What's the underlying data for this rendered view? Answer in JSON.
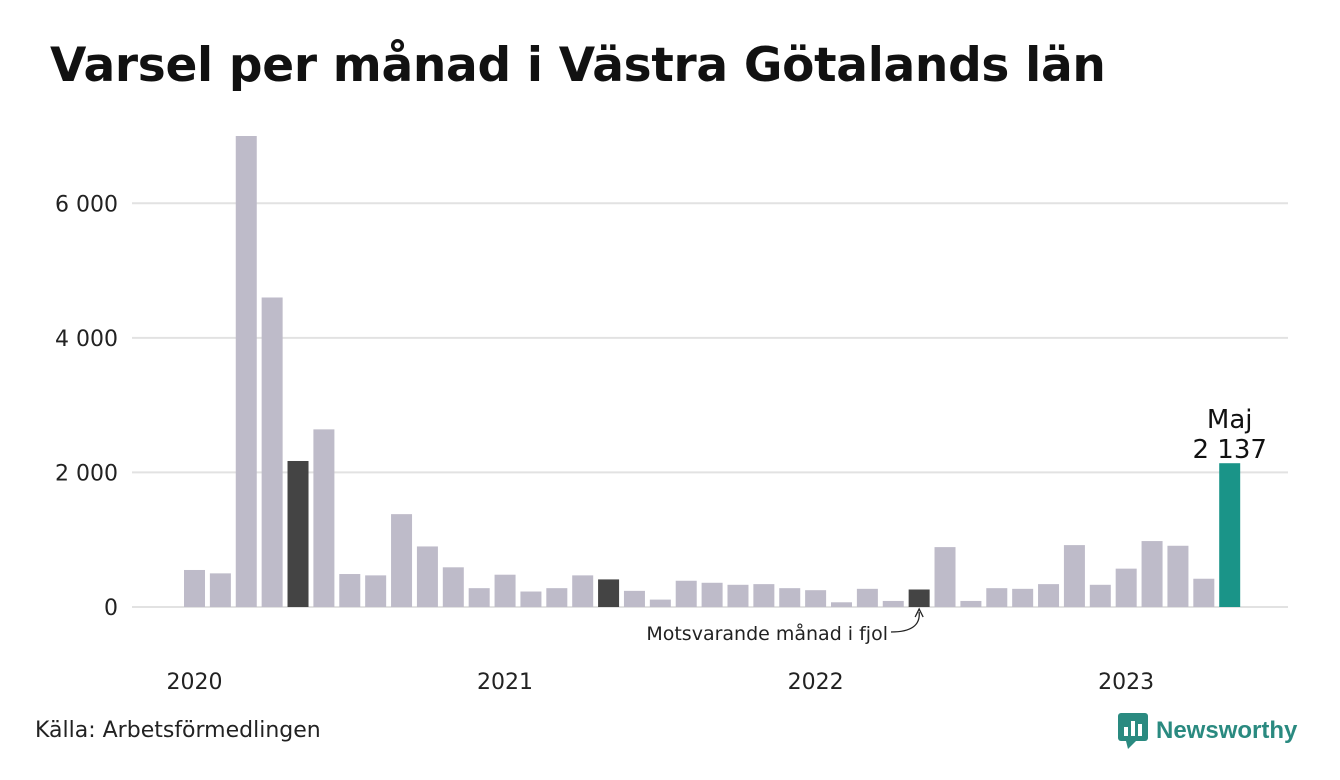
{
  "title": "Varsel per månad i Västra Götalands län",
  "source": "Källa: Arbetsförmedlingen",
  "brand": "Newsworthy",
  "colors": {
    "bar": "#bebbc9",
    "comparison": "#444444",
    "highlight": "#1a9488",
    "grid": "#e2e2e2",
    "brand": "#2a8a80"
  },
  "chart_data": {
    "type": "bar",
    "title": "Varsel per månad i Västra Götalands län",
    "ylim": [
      0,
      7000
    ],
    "y_ticks": [
      0,
      2000,
      4000,
      6000
    ],
    "y_tick_labels": [
      "0",
      "2 000",
      "4 000",
      "6 000"
    ],
    "x_tick_labels": [
      "2020",
      "2021",
      "2022",
      "2023"
    ],
    "grid": true,
    "categories": [
      "2020-01",
      "2020-02",
      "2020-03",
      "2020-04",
      "2020-05",
      "2020-06",
      "2020-07",
      "2020-08",
      "2020-09",
      "2020-10",
      "2020-11",
      "2020-12",
      "2021-01",
      "2021-02",
      "2021-03",
      "2021-04",
      "2021-05",
      "2021-06",
      "2021-07",
      "2021-08",
      "2021-09",
      "2021-10",
      "2021-11",
      "2021-12",
      "2022-01",
      "2022-02",
      "2022-03",
      "2022-04",
      "2022-05",
      "2022-06",
      "2022-07",
      "2022-08",
      "2022-09",
      "2022-10",
      "2022-11",
      "2022-12",
      "2023-01",
      "2023-02",
      "2023-03",
      "2023-04",
      "2023-05"
    ],
    "values": [
      550,
      500,
      7000,
      4600,
      2170,
      2640,
      490,
      470,
      1380,
      900,
      590,
      280,
      480,
      230,
      280,
      470,
      410,
      240,
      110,
      390,
      360,
      330,
      340,
      280,
      250,
      70,
      270,
      90,
      260,
      890,
      90,
      280,
      270,
      340,
      920,
      330,
      570,
      980,
      910,
      420,
      2137
    ],
    "comparison_months": [
      "2020-05",
      "2021-05",
      "2022-05"
    ],
    "highlight_month": "2023-05",
    "annotations": {
      "highlight_label": "Maj",
      "highlight_value_label": "2 137",
      "comparison_note": "Motsvarande månad i fjol"
    }
  }
}
